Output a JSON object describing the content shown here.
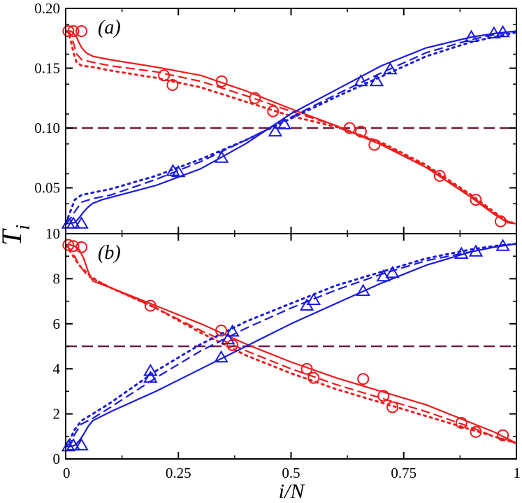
{
  "chart_data": [
    {
      "panel": "(a)",
      "type": "line",
      "ylabel_main": "T",
      "ylabel_sub": "i",
      "xlabel": "i/N",
      "xlim": [
        0,
        1
      ],
      "ylim": [
        0.0117,
        0.2
      ],
      "yticks": [
        0.05,
        0.1,
        0.15,
        0.2
      ],
      "ytick_labels": [
        "0.05",
        "0.10",
        "0.15",
        "0.20"
      ],
      "reference": {
        "name": "T0",
        "y": 0.1,
        "color": "#6d1a46"
      },
      "series": [
        {
          "name": "red-solid",
          "color": "#ee1c1c",
          "dash": "solid",
          "x": [
            0,
            0.006,
            0.012,
            0.018,
            0.024,
            0.03,
            0.036,
            0.045,
            0.06,
            0.1,
            0.2,
            0.3,
            0.4,
            0.5,
            0.6,
            0.7,
            0.8,
            0.9,
            0.95,
            0.98,
            1.0
          ],
          "y": [
            0.181,
            0.181,
            0.181,
            0.179,
            0.176,
            0.171,
            0.167,
            0.163,
            0.16,
            0.157,
            0.151,
            0.144,
            0.131,
            0.116,
            0.102,
            0.086,
            0.067,
            0.042,
            0.028,
            0.021,
            0.02
          ]
        },
        {
          "name": "red-dashed",
          "color": "#ee1c1c",
          "dash": "dashed",
          "x": [
            0,
            0.006,
            0.012,
            0.018,
            0.024,
            0.036,
            0.06,
            0.1,
            0.2,
            0.3,
            0.4,
            0.5,
            0.6,
            0.7,
            0.8,
            0.9,
            0.95,
            0.98,
            1.0
          ],
          "y": [
            0.181,
            0.181,
            0.178,
            0.17,
            0.162,
            0.157,
            0.155,
            0.152,
            0.147,
            0.139,
            0.127,
            0.114,
            0.102,
            0.087,
            0.068,
            0.043,
            0.029,
            0.022,
            0.02
          ]
        },
        {
          "name": "red-dotted",
          "color": "#ee1c1c",
          "dash": "dotted",
          "x": [
            0,
            0.006,
            0.012,
            0.018,
            0.024,
            0.036,
            0.06,
            0.1,
            0.2,
            0.3,
            0.4,
            0.5,
            0.6,
            0.7,
            0.8,
            0.9,
            0.95,
            0.98,
            1.0
          ],
          "y": [
            0.181,
            0.18,
            0.172,
            0.162,
            0.155,
            0.152,
            0.151,
            0.148,
            0.142,
            0.134,
            0.122,
            0.11,
            0.101,
            0.088,
            0.069,
            0.044,
            0.03,
            0.022,
            0.02
          ]
        },
        {
          "name": "blue-solid",
          "color": "#1a1adf",
          "dash": "solid",
          "x": [
            0,
            0.02,
            0.03,
            0.04,
            0.05,
            0.06,
            0.08,
            0.1,
            0.2,
            0.3,
            0.4,
            0.5,
            0.6,
            0.7,
            0.8,
            0.9,
            0.95,
            1.0
          ],
          "y": [
            0.02,
            0.021,
            0.025,
            0.03,
            0.034,
            0.037,
            0.04,
            0.042,
            0.052,
            0.066,
            0.087,
            0.112,
            0.132,
            0.152,
            0.167,
            0.176,
            0.179,
            0.181
          ]
        },
        {
          "name": "blue-dashed",
          "color": "#1a1adf",
          "dash": "dashed",
          "x": [
            0,
            0.01,
            0.02,
            0.035,
            0.06,
            0.1,
            0.2,
            0.3,
            0.4,
            0.5,
            0.6,
            0.7,
            0.8,
            0.9,
            0.95,
            1.0
          ],
          "y": [
            0.02,
            0.024,
            0.03,
            0.038,
            0.041,
            0.044,
            0.057,
            0.072,
            0.09,
            0.109,
            0.128,
            0.146,
            0.163,
            0.174,
            0.178,
            0.181
          ]
        },
        {
          "name": "blue-dotted",
          "color": "#1a1adf",
          "dash": "dotted",
          "x": [
            0,
            0.01,
            0.02,
            0.035,
            0.06,
            0.1,
            0.2,
            0.3,
            0.4,
            0.5,
            0.6,
            0.7,
            0.8,
            0.9,
            0.95,
            1.0
          ],
          "y": [
            0.02,
            0.03,
            0.04,
            0.044,
            0.046,
            0.049,
            0.06,
            0.074,
            0.09,
            0.108,
            0.126,
            0.143,
            0.16,
            0.172,
            0.176,
            0.18
          ]
        }
      ],
      "markers": [
        {
          "shape": "circle",
          "color": "#ee1c1c",
          "points": [
            [
              0.006,
              0.181
            ],
            [
              0.017,
              0.181
            ],
            [
              0.035,
              0.181
            ],
            [
              0.218,
              0.144
            ],
            [
              0.237,
              0.136
            ],
            [
              0.346,
              0.139
            ],
            [
              0.42,
              0.125
            ],
            [
              0.46,
              0.114
            ],
            [
              0.63,
              0.1
            ],
            [
              0.655,
              0.097
            ],
            [
              0.685,
              0.086
            ],
            [
              0.83,
              0.06
            ],
            [
              0.91,
              0.04
            ],
            [
              0.965,
              0.022
            ]
          ]
        },
        {
          "shape": "triangle",
          "color": "#1a1adf",
          "points": [
            [
              0.006,
              0.02
            ],
            [
              0.017,
              0.02
            ],
            [
              0.035,
              0.02
            ],
            [
              0.238,
              0.064
            ],
            [
              0.25,
              0.063
            ],
            [
              0.346,
              0.075
            ],
            [
              0.465,
              0.097
            ],
            [
              0.485,
              0.103
            ],
            [
              0.655,
              0.139
            ],
            [
              0.69,
              0.139
            ],
            [
              0.72,
              0.149
            ],
            [
              0.9,
              0.176
            ],
            [
              0.95,
              0.179
            ],
            [
              0.97,
              0.18
            ]
          ]
        }
      ]
    },
    {
      "panel": "(b)",
      "type": "line",
      "xlabel": "i/N",
      "xlim": [
        0,
        1
      ],
      "ylim": [
        0,
        10
      ],
      "yticks": [
        0,
        2,
        4,
        6,
        8,
        10
      ],
      "ytick_labels": [
        "0",
        "2",
        "4",
        "6",
        "8",
        "10"
      ],
      "xticks": [
        0,
        0.25,
        0.5,
        0.75,
        1
      ],
      "xtick_labels": [
        "0",
        "0.25",
        "0.5",
        "0.75",
        "1"
      ],
      "reference": {
        "name": "T0",
        "y": 5,
        "color": "#6d1a46"
      },
      "series": [
        {
          "name": "red-solid",
          "color": "#ee1c1c",
          "dash": "solid",
          "x": [
            0,
            0.01,
            0.02,
            0.03,
            0.04,
            0.05,
            0.06,
            0.1,
            0.2,
            0.3,
            0.4,
            0.5,
            0.6,
            0.7,
            0.8,
            0.9,
            0.95,
            1.0
          ],
          "y": [
            9.5,
            9.5,
            9.45,
            9.3,
            8.9,
            8.3,
            7.9,
            7.6,
            6.8,
            6.0,
            5.1,
            4.3,
            3.6,
            3.0,
            2.4,
            1.6,
            1.2,
            0.7
          ]
        },
        {
          "name": "red-dashed",
          "color": "#ee1c1c",
          "dash": "dashed",
          "x": [
            0,
            0.01,
            0.02,
            0.03,
            0.05,
            0.07,
            0.1,
            0.2,
            0.3,
            0.4,
            0.5,
            0.6,
            0.7,
            0.8,
            0.9,
            0.95,
            1.0
          ],
          "y": [
            9.5,
            9.3,
            9.0,
            8.6,
            8.1,
            7.9,
            7.6,
            6.7,
            5.7,
            4.8,
            4.0,
            3.3,
            2.7,
            2.1,
            1.4,
            1.0,
            0.7
          ]
        },
        {
          "name": "red-dotted",
          "color": "#ee1c1c",
          "dash": "dotted",
          "x": [
            0,
            0.01,
            0.02,
            0.03,
            0.05,
            0.07,
            0.1,
            0.2,
            0.3,
            0.4,
            0.5,
            0.6,
            0.7,
            0.8,
            0.9,
            0.95,
            1.0
          ],
          "y": [
            9.5,
            9.2,
            8.9,
            8.6,
            8.2,
            7.9,
            7.6,
            6.7,
            5.6,
            4.6,
            3.8,
            3.1,
            2.5,
            1.9,
            1.3,
            1.0,
            0.7
          ]
        },
        {
          "name": "blue-solid",
          "color": "#1a1adf",
          "dash": "solid",
          "x": [
            0,
            0.01,
            0.02,
            0.03,
            0.04,
            0.05,
            0.06,
            0.1,
            0.2,
            0.3,
            0.4,
            0.5,
            0.6,
            0.7,
            0.8,
            0.9,
            0.95,
            1.0
          ],
          "y": [
            0.55,
            0.55,
            0.6,
            0.8,
            1.1,
            1.45,
            1.7,
            2.1,
            3.0,
            4.0,
            5.0,
            6.0,
            6.9,
            7.8,
            8.6,
            9.2,
            9.4,
            9.55
          ]
        },
        {
          "name": "blue-dashed",
          "color": "#1a1adf",
          "dash": "dashed",
          "x": [
            0,
            0.01,
            0.02,
            0.035,
            0.06,
            0.1,
            0.2,
            0.3,
            0.4,
            0.5,
            0.6,
            0.7,
            0.8,
            0.9,
            0.95,
            1.0
          ],
          "y": [
            0.55,
            0.7,
            1.1,
            1.55,
            1.8,
            2.3,
            3.6,
            4.8,
            5.8,
            6.7,
            7.5,
            8.2,
            8.8,
            9.2,
            9.4,
            9.55
          ]
        },
        {
          "name": "blue-dotted",
          "color": "#1a1adf",
          "dash": "dotted",
          "x": [
            0,
            0.01,
            0.02,
            0.035,
            0.06,
            0.1,
            0.2,
            0.3,
            0.4,
            0.5,
            0.6,
            0.7,
            0.8,
            0.9,
            0.95,
            1.0
          ],
          "y": [
            0.55,
            0.9,
            1.3,
            1.7,
            2.0,
            2.5,
            3.9,
            5.1,
            6.1,
            6.9,
            7.7,
            8.3,
            8.9,
            9.3,
            9.45,
            9.55
          ]
        }
      ],
      "markers": [
        {
          "shape": "circle",
          "color": "#ee1c1c",
          "points": [
            [
              0.006,
              9.5
            ],
            [
              0.017,
              9.45
            ],
            [
              0.035,
              9.4
            ],
            [
              0.188,
              6.8
            ],
            [
              0.345,
              5.7
            ],
            [
              0.37,
              5.05
            ],
            [
              0.535,
              4.0
            ],
            [
              0.55,
              3.6
            ],
            [
              0.66,
              3.55
            ],
            [
              0.705,
              2.8
            ],
            [
              0.725,
              2.3
            ],
            [
              0.878,
              1.6
            ],
            [
              0.91,
              1.2
            ],
            [
              0.97,
              1.05
            ]
          ]
        },
        {
          "shape": "triangle",
          "color": "#1a1adf",
          "points": [
            [
              0.006,
              0.55
            ],
            [
              0.017,
              0.6
            ],
            [
              0.035,
              0.6
            ],
            [
              0.188,
              3.9
            ],
            [
              0.188,
              3.6
            ],
            [
              0.345,
              4.5
            ],
            [
              0.36,
              5.3
            ],
            [
              0.37,
              5.65
            ],
            [
              0.535,
              6.8
            ],
            [
              0.55,
              7.05
            ],
            [
              0.66,
              7.45
            ],
            [
              0.705,
              8.1
            ],
            [
              0.725,
              8.25
            ],
            [
              0.878,
              9.1
            ],
            [
              0.91,
              9.2
            ],
            [
              0.97,
              9.45
            ]
          ]
        }
      ]
    }
  ]
}
